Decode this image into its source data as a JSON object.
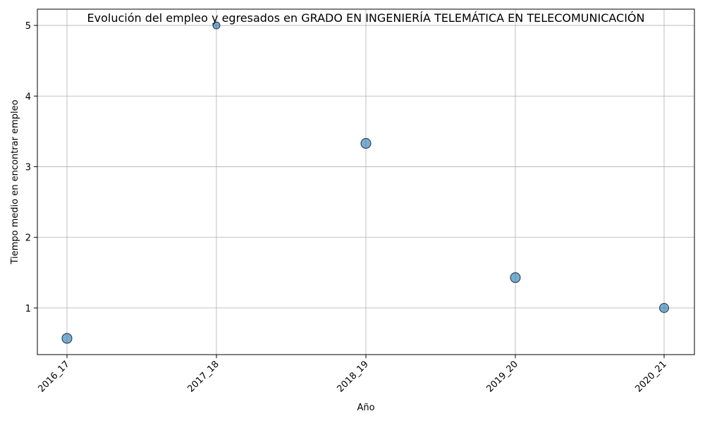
{
  "chart_data": {
    "type": "scatter",
    "title": "Evolución del empleo y egresados en GRADO EN INGENIERÍA TELEMÁTICA EN TELECOMUNICACIÓN",
    "xlabel": "Año",
    "ylabel": "Tiempo medio en encontrar empleo",
    "categories": [
      "2016_17",
      "2017_18",
      "2018_19",
      "2019_20",
      "2020_21"
    ],
    "values": [
      0.57,
      5.0,
      3.33,
      1.43,
      1.0
    ],
    "bubble_size_relative": [
      1.0,
      0.5,
      1.0,
      1.0,
      0.85
    ],
    "yticks": [
      1,
      2,
      3,
      4,
      5
    ],
    "ylim": [
      0.34,
      5.23
    ],
    "grid": true,
    "marker_color": "#1f77b4",
    "marker_edge_color": "#1f2f3f"
  }
}
